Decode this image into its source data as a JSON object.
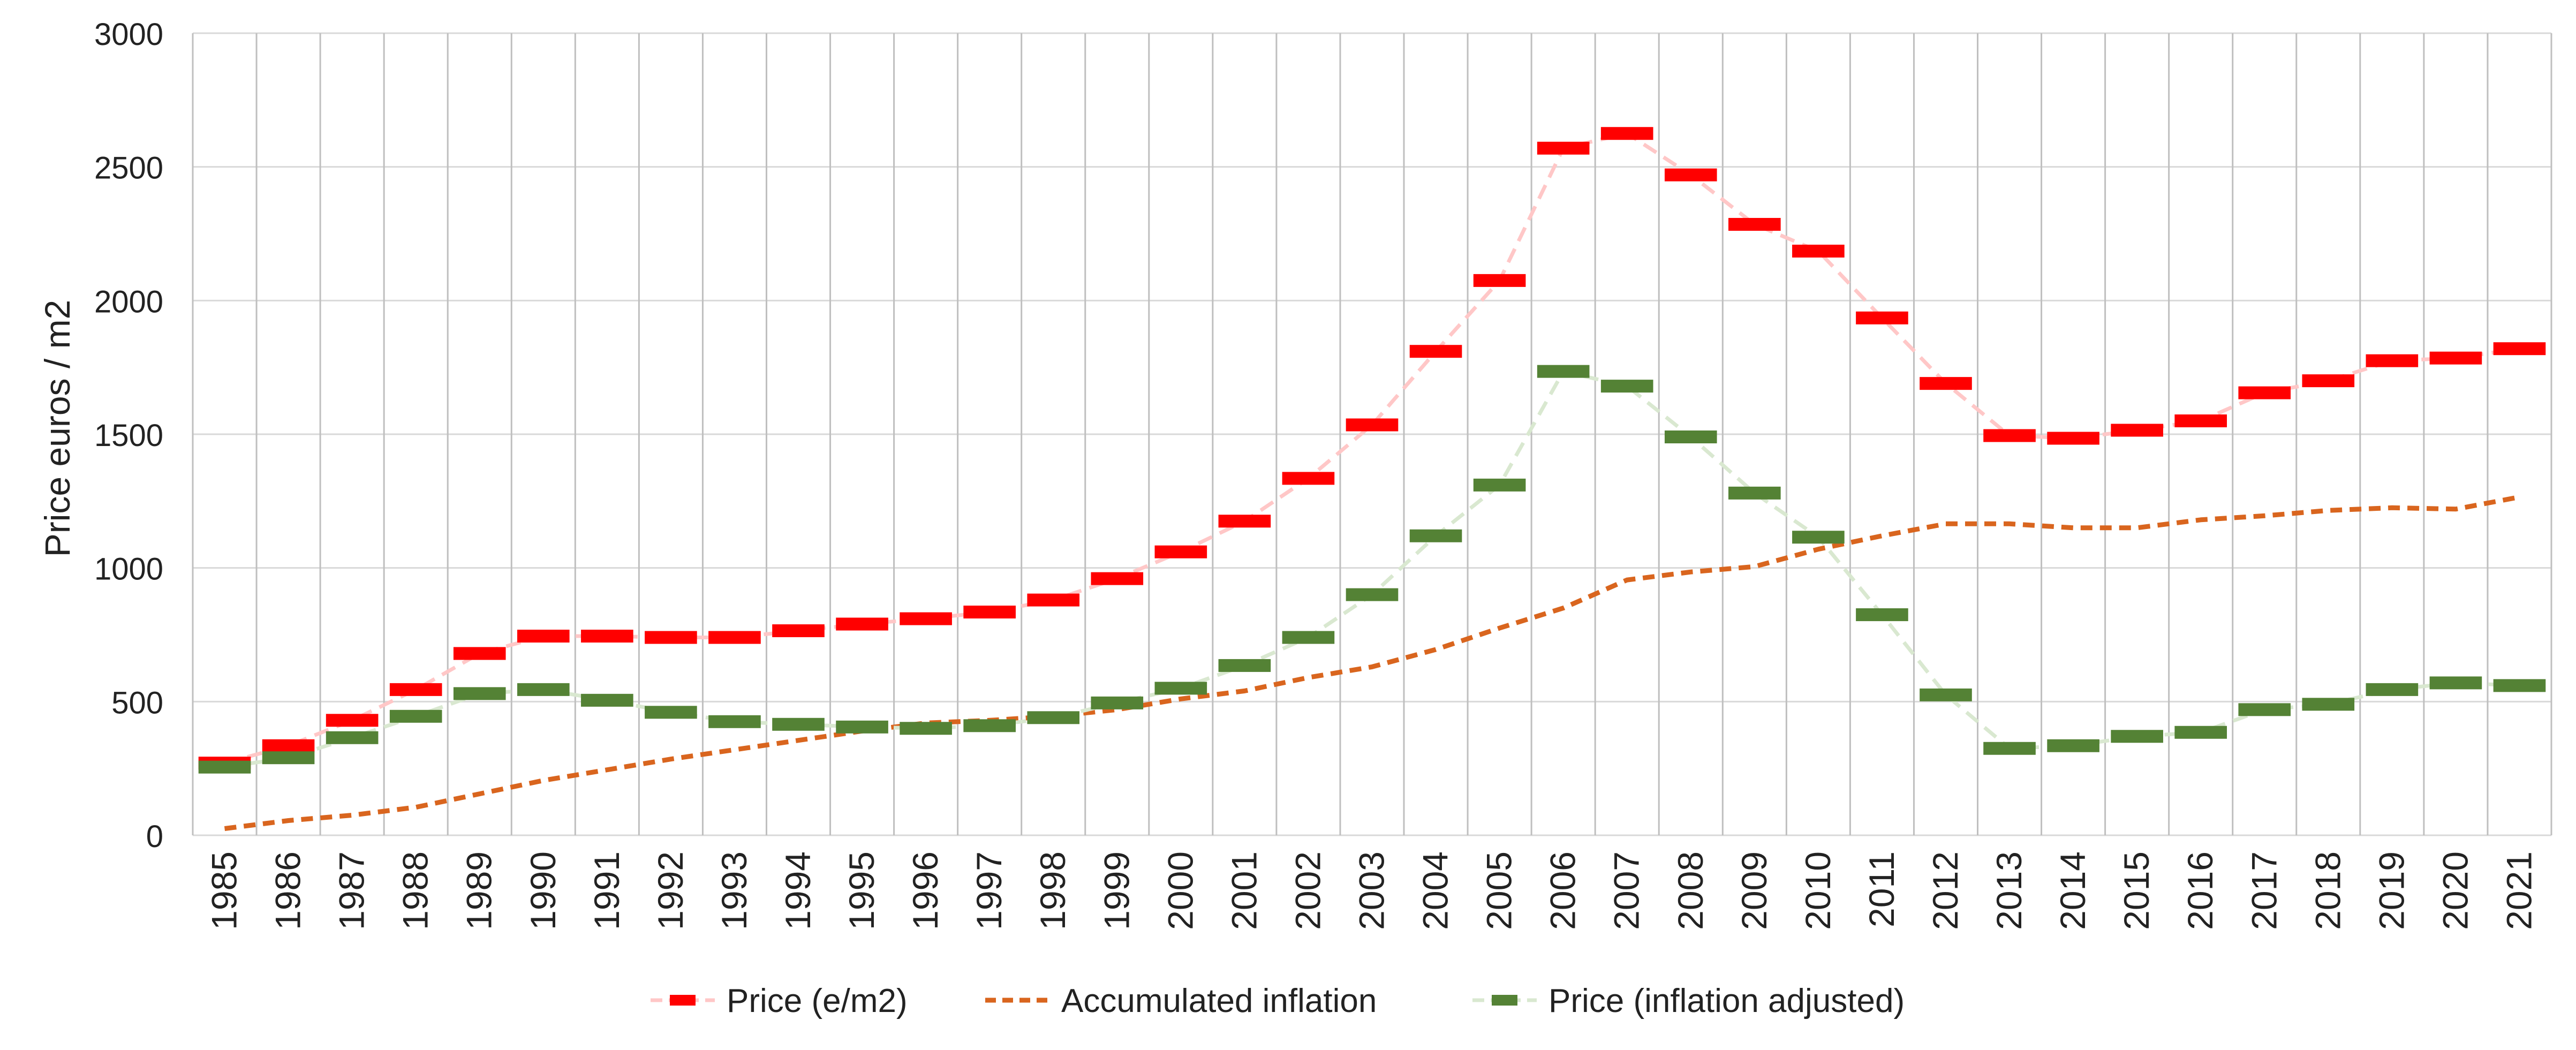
{
  "chart_data": {
    "type": "line",
    "ylabel": "Price euros / m2",
    "xlabel": "",
    "ylim": [
      0,
      3000
    ],
    "yticks": [
      0,
      500,
      1000,
      1500,
      2000,
      2500,
      3000
    ],
    "grid": true,
    "legend_position": "bottom",
    "categories": [
      "1985",
      "1986",
      "1987",
      "1988",
      "1989",
      "1990",
      "1991",
      "1992",
      "1993",
      "1994",
      "1995",
      "1996",
      "1997",
      "1998",
      "1999",
      "2000",
      "2001",
      "2002",
      "2003",
      "2004",
      "2005",
      "2006",
      "2007",
      "2008",
      "2009",
      "2010",
      "2011",
      "2012",
      "2013",
      "2014",
      "2015",
      "2016",
      "2017",
      "2018",
      "2019",
      "2020",
      "2021"
    ],
    "series": [
      {
        "name": "Price (e/m2)",
        "marker_color": "#ff0000",
        "line_color": "#ffc7c7",
        "style": "marker-dash-line",
        "values": [
          270,
          335,
          430,
          545,
          680,
          745,
          745,
          740,
          740,
          765,
          790,
          810,
          835,
          880,
          960,
          1060,
          1175,
          1335,
          1535,
          1810,
          2075,
          2570,
          2625,
          2470,
          2285,
          2185,
          1935,
          1690,
          1495,
          1485,
          1515,
          1550,
          1655,
          1700,
          1775,
          1785,
          1820
        ]
      },
      {
        "name": "Accumulated inflation",
        "marker_color": "#d9651e",
        "line_color": "#d9651e",
        "style": "dashed-line",
        "values": [
          25,
          55,
          75,
          105,
          155,
          205,
          245,
          285,
          320,
          355,
          390,
          420,
          430,
          445,
          470,
          510,
          540,
          590,
          630,
          695,
          775,
          850,
          955,
          985,
          1005,
          1070,
          1120,
          1165,
          1165,
          1150,
          1150,
          1180,
          1195,
          1215,
          1225,
          1220,
          1265
        ]
      },
      {
        "name": "Price (inflation adjusted)",
        "marker_color": "#548235",
        "line_color": "#d9e8d0",
        "style": "marker-dash-line",
        "values": [
          255,
          290,
          365,
          445,
          530,
          545,
          505,
          460,
          425,
          415,
          405,
          400,
          410,
          440,
          495,
          550,
          635,
          740,
          900,
          1120,
          1310,
          1735,
          1680,
          1490,
          1280,
          1115,
          825,
          525,
          325,
          335,
          370,
          385,
          470,
          490,
          545,
          570,
          560
        ]
      }
    ]
  }
}
